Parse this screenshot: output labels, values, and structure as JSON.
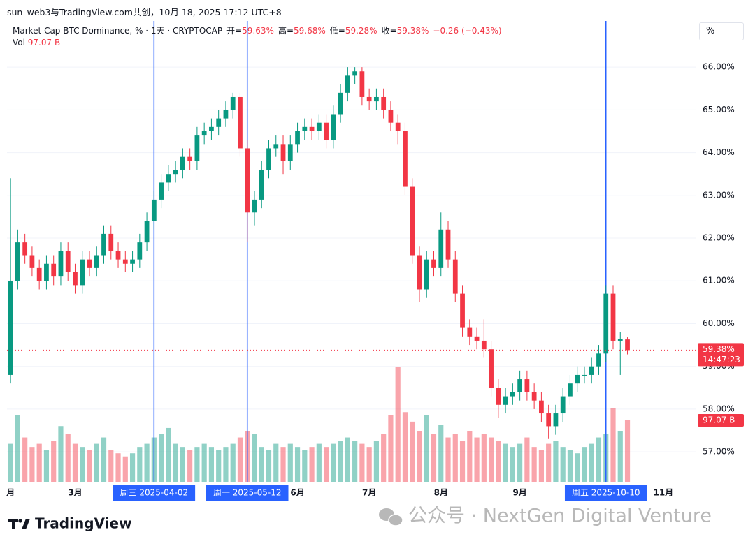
{
  "header": {
    "title": "sun_web3与TradingView.com共创，10月 18, 2025 17:12 UTC+8"
  },
  "chart_data": {
    "type": "candlestick",
    "title": "Market Cap BTC Dominance, % · 1天 · CRYPTOCAP",
    "ohlc_legend": [
      {
        "name": "开=",
        "value": 59.63,
        "label": "59.63%"
      },
      {
        "name": "高=",
        "value": 59.68,
        "label": "59.68%"
      },
      {
        "name": "低=",
        "value": 59.28,
        "label": "59.28%"
      },
      {
        "name": "收=",
        "value": 59.38,
        "label": "59.38%"
      }
    ],
    "change": {
      "value": -0.26,
      "label": "−0.26 (−0.43%)"
    },
    "volume_name": "Vol",
    "last_volume": {
      "value": 97.07,
      "label": "97.07 B"
    },
    "last_price": {
      "value": 59.38,
      "label": "59.38%"
    },
    "countdown": "14:47:23",
    "scale_mode": "%",
    "up_color": "#089981",
    "down_color": "#f23645",
    "marker_color": "#2962ff",
    "grid": true,
    "categories": [
      "月",
      null,
      null,
      null,
      null,
      null,
      null,
      null,
      null,
      "3月",
      null,
      null,
      null,
      null,
      null,
      null,
      null,
      null,
      null,
      null,
      null,
      null,
      null,
      null,
      null,
      null,
      null,
      null,
      null,
      null,
      null,
      null,
      null,
      null,
      null,
      null,
      null,
      null,
      null,
      null,
      "6月",
      null,
      null,
      null,
      null,
      null,
      null,
      null,
      null,
      null,
      "7月",
      null,
      null,
      null,
      null,
      null,
      null,
      null,
      null,
      null,
      "8月",
      null,
      null,
      null,
      null,
      null,
      null,
      null,
      null,
      null,
      null,
      "9月",
      null,
      null,
      null,
      null,
      null,
      null,
      null,
      null,
      null,
      null,
      null,
      null,
      null,
      null,
      null,
      null,
      null,
      null,
      null,
      "11月",
      null,
      null,
      null,
      null
    ],
    "open": [
      58.8,
      61.0,
      61.9,
      61.6,
      61.3,
      61.0,
      61.4,
      61.1,
      61.7,
      61.2,
      60.9,
      61.5,
      61.3,
      61.6,
      62.1,
      61.7,
      61.5,
      61.4,
      61.5,
      61.9,
      62.4,
      62.9,
      63.3,
      63.5,
      63.6,
      63.9,
      63.8,
      64.4,
      64.5,
      64.6,
      64.8,
      65.0,
      65.3,
      64.1,
      62.6,
      62.9,
      63.6,
      64.1,
      64.2,
      63.8,
      64.2,
      64.5,
      64.6,
      64.5,
      64.7,
      64.3,
      64.9,
      65.4,
      65.8,
      65.9,
      65.3,
      65.2,
      65.3,
      65.0,
      64.7,
      64.5,
      63.2,
      61.6,
      60.8,
      61.5,
      61.3,
      62.2,
      61.5,
      60.7,
      59.9,
      59.7,
      59.6,
      59.4,
      58.5,
      58.1,
      58.3,
      58.4,
      58.7,
      58.4,
      58.2,
      57.9,
      57.6,
      57.9,
      58.3,
      58.6,
      58.8,
      58.8,
      59.0,
      59.3,
      60.7,
      59.6,
      59.63,
      null,
      null,
      null,
      null,
      null,
      null,
      null,
      null,
      null
    ],
    "high": [
      63.4,
      62.2,
      62.1,
      61.8,
      61.5,
      61.6,
      61.6,
      61.9,
      61.9,
      61.4,
      61.7,
      61.7,
      61.8,
      62.3,
      62.3,
      61.9,
      61.7,
      61.7,
      62.1,
      62.6,
      63.1,
      63.5,
      63.7,
      63.8,
      64.1,
      64.1,
      64.6,
      64.7,
      64.8,
      65.0,
      65.2,
      65.4,
      65.4,
      64.3,
      63.1,
      63.8,
      64.3,
      64.4,
      64.4,
      64.4,
      64.7,
      64.8,
      64.8,
      64.9,
      64.9,
      65.1,
      65.6,
      66.0,
      66.0,
      66.0,
      65.5,
      65.5,
      65.5,
      65.2,
      64.9,
      64.7,
      63.4,
      61.8,
      61.7,
      61.7,
      62.6,
      62.4,
      61.7,
      60.9,
      60.1,
      59.9,
      60.1,
      59.6,
      58.7,
      58.5,
      58.6,
      58.9,
      58.9,
      58.6,
      58.4,
      58.1,
      58.1,
      58.5,
      58.8,
      59.0,
      59.0,
      59.2,
      59.5,
      60.9,
      60.9,
      59.8,
      59.68,
      null,
      null,
      null,
      null,
      null,
      null,
      null,
      null,
      null
    ],
    "low": [
      58.6,
      60.8,
      61.4,
      61.1,
      60.8,
      60.8,
      60.9,
      60.9,
      61.0,
      60.7,
      60.7,
      61.1,
      61.1,
      61.4,
      61.5,
      61.3,
      61.2,
      61.2,
      61.3,
      61.7,
      62.2,
      62.7,
      63.1,
      63.3,
      63.4,
      63.6,
      63.6,
      64.2,
      64.3,
      64.4,
      64.6,
      64.8,
      63.9,
      61.9,
      62.3,
      62.7,
      63.4,
      63.9,
      63.5,
      63.6,
      64.0,
      64.3,
      64.3,
      64.3,
      64.1,
      64.1,
      64.7,
      65.2,
      65.6,
      65.1,
      65.0,
      65.0,
      64.8,
      64.5,
      64.2,
      63.0,
      61.4,
      60.5,
      60.6,
      61.1,
      61.1,
      61.3,
      60.5,
      59.7,
      59.5,
      59.4,
      59.2,
      58.3,
      57.8,
      57.9,
      58.1,
      58.2,
      58.2,
      58.0,
      57.7,
      57.3,
      57.4,
      57.7,
      58.1,
      58.4,
      58.6,
      58.6,
      58.8,
      59.1,
      59.4,
      58.8,
      59.28,
      null,
      null,
      null,
      null,
      null,
      null,
      null,
      null,
      null
    ],
    "close": [
      61.0,
      61.9,
      61.6,
      61.3,
      61.0,
      61.4,
      61.1,
      61.7,
      61.2,
      60.9,
      61.5,
      61.3,
      61.6,
      62.1,
      61.7,
      61.5,
      61.4,
      61.5,
      61.9,
      62.4,
      62.9,
      63.3,
      63.5,
      63.6,
      63.9,
      63.8,
      64.4,
      64.5,
      64.6,
      64.8,
      65.0,
      65.3,
      64.1,
      62.6,
      62.9,
      63.6,
      64.1,
      64.2,
      63.8,
      64.2,
      64.5,
      64.6,
      64.5,
      64.7,
      64.3,
      64.9,
      65.4,
      65.8,
      65.9,
      65.3,
      65.2,
      65.3,
      65.0,
      64.7,
      64.5,
      63.2,
      61.6,
      60.8,
      61.5,
      61.3,
      62.2,
      61.5,
      60.7,
      59.9,
      59.7,
      59.6,
      59.4,
      58.5,
      58.1,
      58.3,
      58.4,
      58.7,
      58.4,
      58.2,
      57.9,
      57.6,
      57.9,
      58.3,
      58.6,
      58.8,
      58.8,
      59.0,
      59.3,
      60.7,
      59.6,
      59.64,
      59.38,
      null,
      null,
      null,
      null,
      null,
      null,
      null,
      null,
      null
    ],
    "volume": [
      60,
      105,
      70,
      55,
      60,
      50,
      65,
      88,
      75,
      60,
      55,
      50,
      60,
      70,
      50,
      45,
      40,
      45,
      55,
      60,
      70,
      75,
      85,
      60,
      55,
      50,
      55,
      60,
      55,
      50,
      55,
      60,
      70,
      80,
      75,
      55,
      50,
      60,
      55,
      60,
      55,
      50,
      55,
      60,
      55,
      60,
      65,
      70,
      65,
      60,
      55,
      65,
      75,
      105,
      182,
      110,
      95,
      80,
      105,
      75,
      90,
      70,
      75,
      65,
      80,
      70,
      75,
      70,
      65,
      60,
      55,
      60,
      70,
      55,
      50,
      60,
      65,
      55,
      50,
      45,
      55,
      60,
      70,
      75,
      116,
      80,
      97.07,
      null,
      null,
      null,
      null,
      null,
      null,
      null,
      null,
      null
    ],
    "vol_ylim": [
      0,
      728
    ],
    "ylim": [
      56.3,
      67.08
    ],
    "yticks": [
      {
        "value": 57,
        "label": "57.00%"
      },
      {
        "value": 58,
        "label": "58.00%"
      },
      {
        "value": 59,
        "label": "59.00%"
      },
      {
        "value": 60,
        "label": "60.00%"
      },
      {
        "value": 61,
        "label": "61.00%"
      },
      {
        "value": 62,
        "label": "62.00%"
      },
      {
        "value": 63,
        "label": "63.00%"
      },
      {
        "value": 64,
        "label": "64.00%"
      },
      {
        "value": 65,
        "label": "65.00%"
      },
      {
        "value": 66,
        "label": "66.00%"
      }
    ],
    "vlines": [
      {
        "at": 20,
        "label": "周三 2025-04-02"
      },
      {
        "at": 33,
        "label": "周一 2025-05-12"
      },
      {
        "at": 83,
        "label": "周五 2025-10-10"
      }
    ]
  },
  "branding": {
    "logo": "TradingView",
    "watermark": "公众号 · NextGen Digital Venture"
  }
}
